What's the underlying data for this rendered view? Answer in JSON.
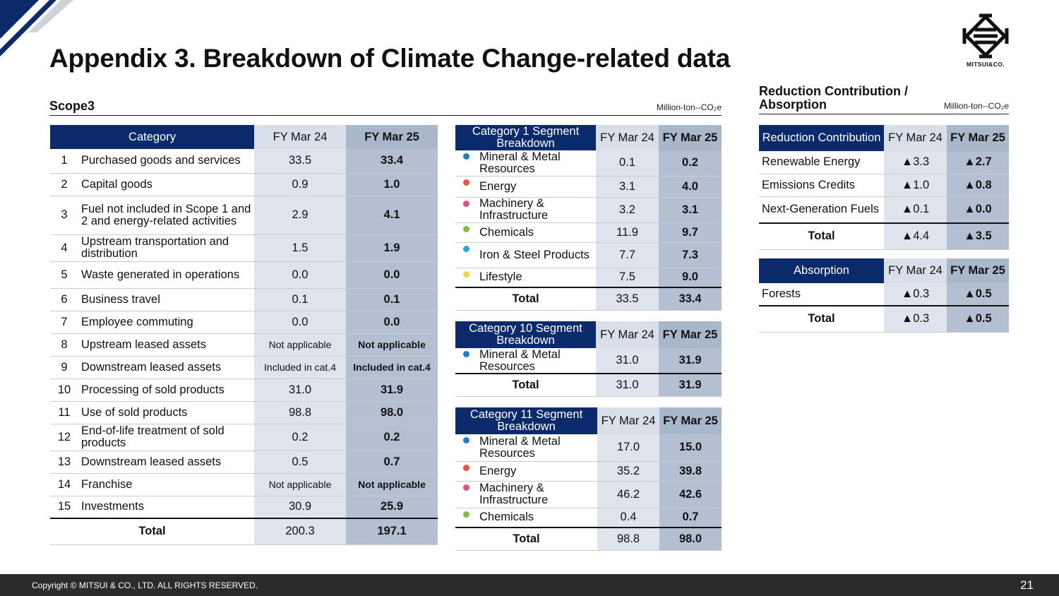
{
  "title": "Appendix 3. Breakdown of Climate Change-related data",
  "logo": {
    "name": "MITSUI&CO."
  },
  "scope3": {
    "title": "Scope3",
    "unit": "Million-ton--CO₂e",
    "headers": {
      "category": "Category",
      "fy24": "FY Mar 24",
      "fy25": "FY Mar 25"
    },
    "rows": [
      {
        "no": "1",
        "label": "Purchased goods and services",
        "fy24": "33.5",
        "fy25": "33.4"
      },
      {
        "no": "2",
        "label": "Capital goods",
        "fy24": "0.9",
        "fy25": "1.0"
      },
      {
        "no": "3",
        "label": "Fuel not included in Scope 1 and 2 and energy-related activities",
        "fy24": "2.9",
        "fy25": "4.1"
      },
      {
        "no": "4",
        "label": "Upstream transportation and distribution",
        "fy24": "1.5",
        "fy25": "1.9"
      },
      {
        "no": "5",
        "label": "Waste generated in operations",
        "fy24": "0.0",
        "fy25": "0.0"
      },
      {
        "no": "6",
        "label": "Business travel",
        "fy24": "0.1",
        "fy25": "0.1"
      },
      {
        "no": "7",
        "label": "Employee commuting",
        "fy24": "0.0",
        "fy25": "0.0"
      },
      {
        "no": "8",
        "label": "Upstream leased assets",
        "fy24": "Not applicable",
        "fy25": "Not applicable"
      },
      {
        "no": "9",
        "label": "Downstream leased assets",
        "fy24": "Included in cat.4",
        "fy25": "Included in cat.4"
      },
      {
        "no": "10",
        "label": "Processing of sold products",
        "fy24": "31.0",
        "fy25": "31.9"
      },
      {
        "no": "11",
        "label": "Use of sold products",
        "fy24": "98.8",
        "fy25": "98.0"
      },
      {
        "no": "12",
        "label": "End-of-life treatment of sold products",
        "fy24": "0.2",
        "fy25": "0.2"
      },
      {
        "no": "13",
        "label": "Downstream leased assets",
        "fy24": "0.5",
        "fy25": "0.7"
      },
      {
        "no": "14",
        "label": "Franchise",
        "fy24": "Not applicable",
        "fy25": "Not applicable"
      },
      {
        "no": "15",
        "label": "Investments",
        "fy24": "30.9",
        "fy25": "25.9"
      }
    ],
    "total": {
      "label": "Total",
      "fy24": "200.3",
      "fy25": "197.1"
    }
  },
  "cat1": {
    "header": "Category 1 Segment Breakdown",
    "fy24": "FY Mar 24",
    "fy25": "FY Mar 25",
    "rows": [
      {
        "label": "Mineral & Metal Resources",
        "color": "#1f7fc4",
        "fy24": "0.1",
        "fy25": "0.2"
      },
      {
        "label": "Energy",
        "color": "#e8553d",
        "fy24": "3.1",
        "fy25": "4.0"
      },
      {
        "label": "Machinery & Infrastructure",
        "color": "#e0507e",
        "fy24": "3.2",
        "fy25": "3.1"
      },
      {
        "label": "Chemicals",
        "color": "#7cc242",
        "fy24": "11.9",
        "fy25": "9.7"
      },
      {
        "label": "Iron & Steel Products",
        "color": "#29a8d8",
        "fy24": "7.7",
        "fy25": "7.3"
      },
      {
        "label": "Lifestyle",
        "color": "#f5d63d",
        "fy24": "7.5",
        "fy25": "9.0"
      }
    ],
    "total": {
      "label": "Total",
      "fy24": "33.5",
      "fy25": "33.4"
    }
  },
  "cat10": {
    "header": "Category 10 Segment Breakdown",
    "fy24": "FY Mar 24",
    "fy25": "FY Mar 25",
    "rows": [
      {
        "label": "Mineral & Metal Resources",
        "color": "#1f7fc4",
        "fy24": "31.0",
        "fy25": "31.9"
      }
    ],
    "total": {
      "label": "Total",
      "fy24": "31.0",
      "fy25": "31.9"
    }
  },
  "cat11": {
    "header": "Category 11 Segment Breakdown",
    "fy24": "FY Mar 24",
    "fy25": "FY Mar 25",
    "rows": [
      {
        "label": "Mineral & Metal Resources",
        "color": "#1f7fc4",
        "fy24": "17.0",
        "fy25": "15.0"
      },
      {
        "label": "Energy",
        "color": "#e8553d",
        "fy24": "35.2",
        "fy25": "39.8"
      },
      {
        "label": "Machinery & Infrastructure",
        "color": "#e0507e",
        "fy24": "46.2",
        "fy25": "42.6"
      },
      {
        "label": "Chemicals",
        "color": "#7cc242",
        "fy24": "0.4",
        "fy25": "0.7"
      }
    ],
    "total": {
      "label": "Total",
      "fy24": "98.8",
      "fy25": "98.0"
    }
  },
  "reduction": {
    "title": "Reduction Contribution / Absorption",
    "unit": "Million-ton--CO₂e",
    "rc_header": "Reduction Contribution",
    "fy24": "FY Mar 24",
    "fy25": "FY Mar 25",
    "rc_rows": [
      {
        "label": "Renewable Energy",
        "fy24": "▲3.3",
        "fy25": "▲2.7"
      },
      {
        "label": "Emissions Credits",
        "fy24": "▲1.0",
        "fy25": "▲0.8"
      },
      {
        "label": "Next-Generation Fuels",
        "fy24": "▲0.1",
        "fy25": "▲0.0"
      }
    ],
    "rc_total": {
      "label": "Total",
      "fy24": "▲4.4",
      "fy25": "▲3.5"
    },
    "ab_header": "Absorption",
    "ab_rows": [
      {
        "label": "Forests",
        "fy24": "▲0.3",
        "fy25": "▲0.5"
      }
    ],
    "ab_total": {
      "label": "Total",
      "fy24": "▲0.3",
      "fy25": "▲0.5"
    }
  },
  "footer": {
    "copyright": "Copyright © MITSUI & CO., LTD. ALL RIGHTS RESERVED.",
    "page": "21"
  }
}
